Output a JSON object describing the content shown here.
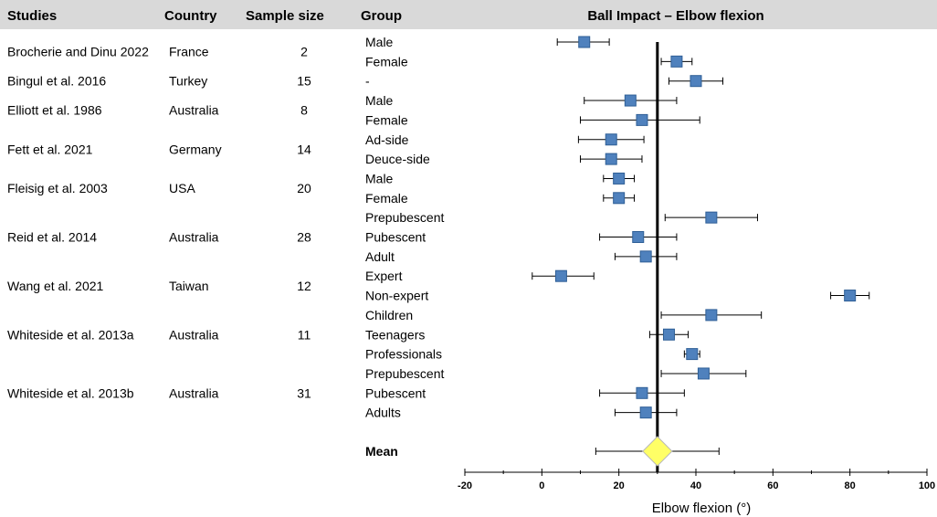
{
  "chart_data": {
    "type": "forest",
    "title": "Ball Impact – Elbow flexion",
    "xlabel": "Elbow flexion (°)",
    "xlim": [
      -20,
      100
    ],
    "xticks": [
      -20,
      0,
      20,
      40,
      60,
      80,
      100
    ],
    "reference_line": 30,
    "headers": {
      "studies": "Studies",
      "country": "Country",
      "sample_size": "Sample size",
      "group": "Group"
    },
    "studies": [
      {
        "name": "Brocherie and Dinu 2022",
        "country": "France",
        "sample_size": "2",
        "groups": [
          {
            "label": "Male",
            "mean": 11,
            "lo": 4,
            "hi": 17.5
          },
          {
            "label": "Female",
            "mean": 35,
            "lo": 31,
            "hi": 39
          }
        ]
      },
      {
        "name": "Bingul et al. 2016",
        "country": "Turkey",
        "sample_size": "15",
        "groups": [
          {
            "label": "-",
            "mean": 40,
            "lo": 33,
            "hi": 47
          }
        ]
      },
      {
        "name": "Elliott et al. 1986",
        "country": "Australia",
        "sample_size": "8",
        "groups": [
          {
            "label": "Male",
            "mean": 23,
            "lo": 11,
            "hi": 35
          },
          {
            "label": "Female",
            "mean": 26,
            "lo": 10,
            "hi": 41
          }
        ]
      },
      {
        "name": "Fett et al. 2021",
        "country": "Germany",
        "sample_size": "14",
        "groups": [
          {
            "label": "Ad-side",
            "mean": 18,
            "lo": 9.5,
            "hi": 26.5
          },
          {
            "label": "Deuce-side",
            "mean": 18,
            "lo": 10,
            "hi": 26
          }
        ]
      },
      {
        "name": "Fleisig et al. 2003",
        "country": "USA",
        "sample_size": "20",
        "groups": [
          {
            "label": "Male",
            "mean": 20,
            "lo": 16,
            "hi": 24
          },
          {
            "label": "Female",
            "mean": 20,
            "lo": 16,
            "hi": 24
          }
        ]
      },
      {
        "name": "Reid et al. 2014",
        "country": "Australia",
        "sample_size": "28",
        "groups": [
          {
            "label": "Prepubescent",
            "mean": 44,
            "lo": 32,
            "hi": 56
          },
          {
            "label": "Pubescent",
            "mean": 25,
            "lo": 15,
            "hi": 35
          },
          {
            "label": "Adult",
            "mean": 27,
            "lo": 19,
            "hi": 35
          }
        ]
      },
      {
        "name": "Wang et al.  2021",
        "country": "Taiwan",
        "sample_size": "12",
        "groups": [
          {
            "label": "Expert",
            "mean": 5,
            "lo": -2.5,
            "hi": 13.5
          },
          {
            "label": "Non-expert",
            "mean": 80,
            "lo": 75,
            "hi": 85
          }
        ]
      },
      {
        "name": "Whiteside et al. 2013a",
        "country": "Australia",
        "sample_size": "11",
        "groups": [
          {
            "label": "Children",
            "mean": 44,
            "lo": 31,
            "hi": 57
          },
          {
            "label": "Teenagers",
            "mean": 33,
            "lo": 28,
            "hi": 38
          },
          {
            "label": "Professionals",
            "mean": 39,
            "lo": 37,
            "hi": 41
          }
        ]
      },
      {
        "name": "Whiteside et al. 2013b",
        "country": "Australia",
        "sample_size": "31",
        "groups": [
          {
            "label": "Prepubescent",
            "mean": 42,
            "lo": 31,
            "hi": 53
          },
          {
            "label": "Pubescent",
            "mean": 26,
            "lo": 15,
            "hi": 37
          },
          {
            "label": "Adults",
            "mean": 27,
            "lo": 19,
            "hi": 35
          }
        ]
      }
    ],
    "mean": {
      "label": "Mean",
      "value": 30,
      "lo": 14,
      "hi": 46
    }
  },
  "colors": {
    "header_bg": "#d9d9d9",
    "marker_fill": "#4f81bd",
    "marker_stroke": "#2f5f96",
    "diamond_fill": "#ffff66",
    "diamond_stroke": "#b8b8b8"
  }
}
